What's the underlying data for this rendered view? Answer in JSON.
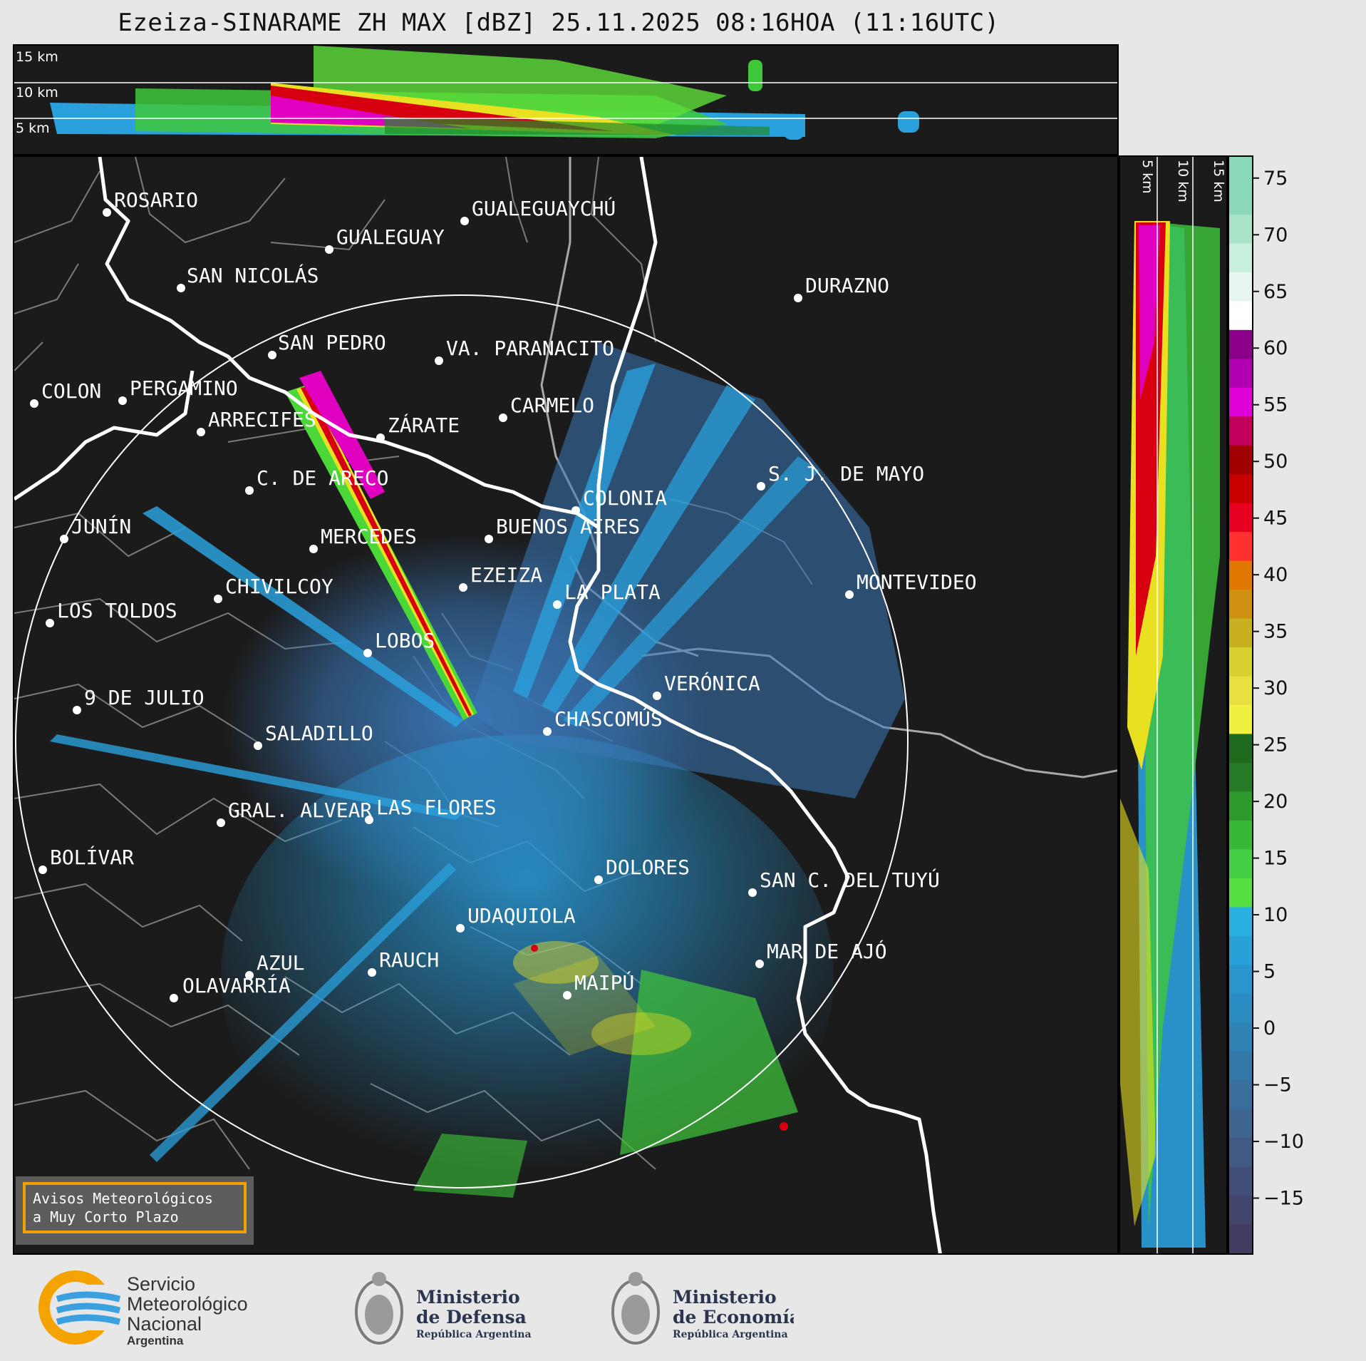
{
  "title": "Ezeiza-SINARAME ZH MAX [dBZ] 25.11.2025 08:16HOA (11:16UTC)",
  "cross_section_top": {
    "height_labels": [
      "15 km",
      "10 km",
      "5 km"
    ]
  },
  "cross_section_right": {
    "height_labels": [
      "5 km",
      "10 km",
      "15 km"
    ]
  },
  "colorbar": {
    "ticks": [
      "75",
      "70",
      "65",
      "60",
      "55",
      "50",
      "45",
      "40",
      "35",
      "30",
      "25",
      "20",
      "15",
      "10",
      "5",
      "0",
      "−5",
      "−10",
      "−15"
    ],
    "range": [
      -20,
      77
    ]
  },
  "cities": [
    {
      "name": "ROSARIO"
    },
    {
      "name": "GUALEGUAYCHÚ"
    },
    {
      "name": "GUALEGUAY"
    },
    {
      "name": "SAN NICOLÁS"
    },
    {
      "name": "DURAZNO"
    },
    {
      "name": "SAN PEDRO"
    },
    {
      "name": "VA. PARANACITO"
    },
    {
      "name": "COLON"
    },
    {
      "name": "PERGAMINO"
    },
    {
      "name": "CARMELO"
    },
    {
      "name": "ARRECIFES"
    },
    {
      "name": "ZÁRATE"
    },
    {
      "name": "S. J. DE MAYO"
    },
    {
      "name": "C. DE ARECO"
    },
    {
      "name": "COLONIA"
    },
    {
      "name": "JUNÍN"
    },
    {
      "name": "BUENOS AIRES"
    },
    {
      "name": "MERCEDES"
    },
    {
      "name": "MONTEVIDEO"
    },
    {
      "name": "EZEIZA"
    },
    {
      "name": "CHIVILCOY"
    },
    {
      "name": "LA PLATA"
    },
    {
      "name": "LOS TOLDOS"
    },
    {
      "name": "LOBOS"
    },
    {
      "name": "VERÓNICA"
    },
    {
      "name": "9 DE JULIO"
    },
    {
      "name": "CHASCOMÚS"
    },
    {
      "name": "SALADILLO"
    },
    {
      "name": "GRAL. ALVEAR"
    },
    {
      "name": "LAS FLORES"
    },
    {
      "name": "BOLÍVAR"
    },
    {
      "name": "DOLORES"
    },
    {
      "name": "SAN C. DEL TUYÚ"
    },
    {
      "name": "UDAQUIOLA"
    },
    {
      "name": "AZUL"
    },
    {
      "name": "RAUCH"
    },
    {
      "name": "MAR DE AJÓ"
    },
    {
      "name": "OLAVARRÍA"
    },
    {
      "name": "MAIPÚ"
    }
  ],
  "avisos": {
    "line1": "Avisos Meteorológicos",
    "line2": "a Muy Corto Plazo"
  },
  "footer": {
    "smn": {
      "line1": "Servicio",
      "line2": "Meteorológico",
      "line3": "Nacional",
      "line4": "Argentina"
    },
    "defensa": {
      "line1": "Ministerio",
      "line2": "de Defensa",
      "line3": "República Argentina"
    },
    "economia": {
      "line1": "Ministerio",
      "line2": "de Economía",
      "line3": "República Argentina"
    }
  },
  "colors": {
    "background": "#1b1b1b",
    "coast": "#ffffff",
    "borders": "#7a7a7a",
    "range_ring": "#ffffff",
    "smn_orange": "#f5a300",
    "smn_blue": "#3aa0e0"
  }
}
